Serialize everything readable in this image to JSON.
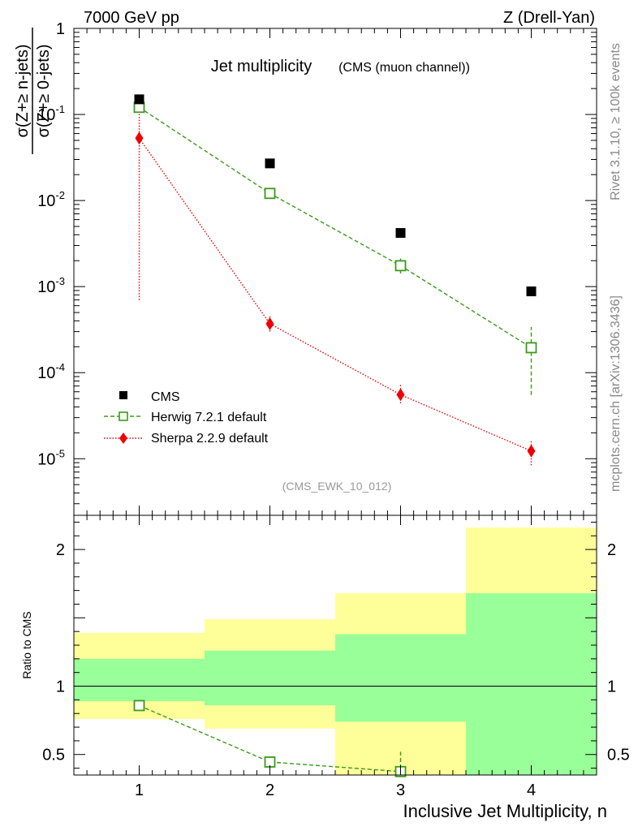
{
  "header": {
    "left": "7000 GeV pp",
    "right": "Z (Drell-Yan)"
  },
  "side": {
    "rivet": "Rivet 3.1.10, ≥ 100k events",
    "mcplots": "mcplots.cern.ch [arXiv:1306.3436]"
  },
  "chart_data": [
    {
      "type": "scatter",
      "panel": "main",
      "title": "Jet multiplicity",
      "subtitle": "(CMS (muon channel))",
      "tag": "(CMS_EWK_10_012)",
      "ylabel_top": "σ(Z+≥ n-jets)",
      "ylabel_bottom": "σ(Z+≥ 0-jets)",
      "yscale": "log",
      "ylim": [
        2.2e-06,
        1.0
      ],
      "xlim": [
        0.5,
        4.5
      ],
      "yticks": [
        {
          "value": 1e-05,
          "base": "10",
          "exp": "-5"
        },
        {
          "value": 0.0001,
          "base": "10",
          "exp": "-4"
        },
        {
          "value": 0.001,
          "base": "10",
          "exp": "-3"
        },
        {
          "value": 0.01,
          "base": "10",
          "exp": "-2"
        },
        {
          "value": 0.1,
          "base": "10",
          "exp": "-1"
        },
        {
          "value": 1.0,
          "base": "1",
          "exp": ""
        }
      ],
      "legend_position": "bottom-left",
      "series": [
        {
          "name": "CMS",
          "color": "#000000",
          "marker": "filled-square",
          "points": [
            {
              "x": 1,
              "y": 0.15
            },
            {
              "x": 2,
              "y": 0.027
            },
            {
              "x": 3,
              "y": 0.0042
            },
            {
              "x": 4,
              "y": 0.00088
            }
          ]
        },
        {
          "name": "Herwig 7.2.1 default",
          "color": "#3a9a1a",
          "marker": "open-square",
          "line": "dashed",
          "points": [
            {
              "x": 1,
              "y": 0.121,
              "lo": 0.117,
              "hi": 0.125
            },
            {
              "x": 2,
              "y": 0.0121,
              "lo": 0.0113,
              "hi": 0.0129
            },
            {
              "x": 3,
              "y": 0.00175,
              "lo": 0.00142,
              "hi": 0.00212
            },
            {
              "x": 4,
              "y": 0.000195,
              "lo": 5.5e-05,
              "hi": 0.00034
            }
          ]
        },
        {
          "name": "Sherpa 2.2.9 default",
          "color": "#ee0000",
          "marker": "filled-diamond",
          "line": "dotted",
          "points": [
            {
              "x": 1,
              "y": 0.053,
              "lo": 0.0007,
              "hi": 0.105
            },
            {
              "x": 2,
              "y": 0.00037,
              "lo": 0.0003,
              "hi": 0.00045
            },
            {
              "x": 3,
              "y": 5.55e-05,
              "lo": 4.4e-05,
              "hi": 7.2e-05
            },
            {
              "x": 4,
              "y": 1.23e-05,
              "lo": 8.4e-06,
              "hi": 1.65e-05
            }
          ]
        }
      ]
    },
    {
      "type": "scatter",
      "panel": "ratio",
      "ylabel": "Ratio to CMS",
      "xlabel": "Inclusive Jet Multiplicity, n",
      "ylim": [
        0.35,
        2.25
      ],
      "xlim": [
        0.5,
        4.5
      ],
      "xticks": [
        "1",
        "2",
        "3",
        "4"
      ],
      "yticks": [
        "0.5",
        "1",
        "2"
      ],
      "reference": 1.0,
      "bands": [
        {
          "x0": 0.5,
          "x1": 1.5,
          "yellow": [
            0.76,
            1.39
          ],
          "green": [
            0.89,
            1.2
          ]
        },
        {
          "x0": 1.5,
          "x1": 2.5,
          "yellow": [
            0.69,
            1.49
          ],
          "green": [
            0.86,
            1.26
          ]
        },
        {
          "x0": 2.5,
          "x1": 3.5,
          "yellow": [
            0.35,
            1.68
          ],
          "green": [
            0.74,
            1.38
          ]
        },
        {
          "x0": 3.5,
          "x1": 4.5,
          "yellow": [
            0.35,
            2.16
          ],
          "green": [
            0.35,
            1.68
          ]
        }
      ],
      "series": [
        {
          "name": "Herwig 7.2.1 default",
          "color": "#3a9a1a",
          "marker": "open-square",
          "line": "dashed",
          "points": [
            {
              "x": 1,
              "y": 0.858,
              "lo": 0.85,
              "hi": 0.866
            },
            {
              "x": 2,
              "y": 0.445,
              "lo": 0.41,
              "hi": 0.495
            },
            {
              "x": 3,
              "y": 0.375,
              "lo": 0.33,
              "hi": 0.52
            }
          ]
        }
      ]
    }
  ]
}
